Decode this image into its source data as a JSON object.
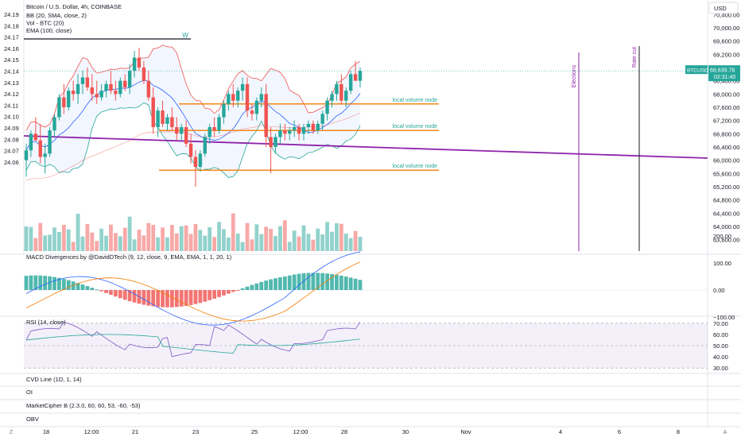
{
  "header": {
    "symbol": "Bitcoin / U.S. Dollar, 4h, COINBASE",
    "indicators": [
      "BB (20, SMA, close, 2)",
      "Vol - BTC (20)",
      "EMA (100, close)"
    ],
    "currency": "USD"
  },
  "price_badge": {
    "ticker": "BTCUSD",
    "price": "68,639.78",
    "countdown": "02:31:40"
  },
  "colors": {
    "up": "#26a69a",
    "down": "#ef5350",
    "ema": "#8e24aa",
    "bb": "#2962ff",
    "level": "#f57c00",
    "rsi": "#7e57c2"
  },
  "chart_data": {
    "type": "candlestick",
    "right_axis": [
      "70,400.00",
      "70,000.00",
      "69,600.00",
      "69,200.00",
      "68,800.00",
      "68,400.00",
      "68,000.00",
      "67,600.00",
      "67,200.00",
      "66,800.00",
      "66,400.00",
      "66,000.00",
      "65,600.00",
      "65,200.00",
      "64,800.00",
      "64,400.00",
      "64,000.00",
      "63,600.00"
    ],
    "left_axis": [
      "24.19",
      "24.18",
      "24.17",
      "24.16",
      "24.15",
      "24.14",
      "24.13",
      "24.12",
      "24.11",
      "24.10",
      "24.09",
      "24.08",
      "24.07",
      "24.06"
    ],
    "x_axis": [
      "18",
      "12:00",
      "21",
      "23",
      "25",
      "12:00",
      "28",
      "30",
      "Nov",
      "4",
      "6",
      "8"
    ],
    "ohlc": [
      [
        66000,
        66500,
        65500,
        66300
      ],
      [
        66300,
        66900,
        66100,
        66800
      ],
      [
        66800,
        67300,
        66600,
        66600
      ],
      [
        66600,
        67100,
        65900,
        66100
      ],
      [
        66100,
        66500,
        65600,
        66200
      ],
      [
        66200,
        67000,
        66100,
        66900
      ],
      [
        66900,
        67400,
        66700,
        67300
      ],
      [
        67300,
        68000,
        67200,
        67900
      ],
      [
        67900,
        68300,
        67400,
        67600
      ],
      [
        67600,
        68200,
        67500,
        68100
      ],
      [
        68100,
        68400,
        67800,
        68000
      ],
      [
        68000,
        68600,
        67700,
        68300
      ],
      [
        68300,
        68700,
        68000,
        68500
      ],
      [
        68500,
        68800,
        68100,
        68200
      ],
      [
        68200,
        68600,
        67800,
        68000
      ],
      [
        68000,
        68400,
        67700,
        67900
      ],
      [
        67900,
        68300,
        67800,
        68100
      ],
      [
        68100,
        68400,
        67900,
        68300
      ],
      [
        68300,
        68700,
        68000,
        68100
      ],
      [
        68100,
        68400,
        67800,
        68000
      ],
      [
        68000,
        68500,
        67900,
        68400
      ],
      [
        68400,
        68600,
        68100,
        68200
      ],
      [
        68200,
        68900,
        68000,
        68700
      ],
      [
        68700,
        69300,
        68500,
        69100
      ],
      [
        69100,
        69400,
        68700,
        68800
      ],
      [
        68800,
        69000,
        68300,
        68400
      ],
      [
        68400,
        68700,
        67800,
        67900
      ],
      [
        67900,
        68200,
        66800,
        67000
      ],
      [
        67000,
        67600,
        66700,
        67500
      ],
      [
        67500,
        67800,
        67000,
        67100
      ],
      [
        67100,
        67400,
        66900,
        67300
      ],
      [
        67300,
        67600,
        66900,
        67000
      ],
      [
        67000,
        67300,
        66600,
        66800
      ],
      [
        66800,
        67100,
        66600,
        67000
      ],
      [
        67000,
        67200,
        66400,
        66500
      ],
      [
        66500,
        66800,
        65900,
        66100
      ],
      [
        66100,
        66300,
        65200,
        65800
      ],
      [
        65800,
        66300,
        65700,
        66200
      ],
      [
        66200,
        66800,
        66100,
        66700
      ],
      [
        66700,
        67100,
        66500,
        67000
      ],
      [
        67000,
        67300,
        66700,
        66900
      ],
      [
        66900,
        67400,
        66800,
        67300
      ],
      [
        67300,
        67800,
        67100,
        67700
      ],
      [
        67700,
        68100,
        67500,
        68000
      ],
      [
        68000,
        68300,
        67600,
        67800
      ],
      [
        67800,
        68200,
        67600,
        68100
      ],
      [
        68100,
        68500,
        67800,
        68300
      ],
      [
        68300,
        68500,
        67300,
        67500
      ],
      [
        67500,
        67700,
        67200,
        67400
      ],
      [
        67400,
        67900,
        67200,
        67800
      ],
      [
        67800,
        68200,
        67600,
        68000
      ],
      [
        68000,
        68300,
        66400,
        66700
      ],
      [
        66700,
        67000,
        65600,
        66400
      ],
      [
        66400,
        66800,
        66200,
        66700
      ],
      [
        66700,
        67100,
        66500,
        66900
      ],
      [
        66900,
        67100,
        66600,
        66800
      ],
      [
        66800,
        67000,
        66600,
        66900
      ],
      [
        66900,
        67200,
        66700,
        67000
      ],
      [
        67000,
        67100,
        66600,
        66800
      ],
      [
        66800,
        67100,
        66600,
        67000
      ],
      [
        67000,
        67200,
        66800,
        67100
      ],
      [
        67100,
        67200,
        66800,
        66900
      ],
      [
        66900,
        67200,
        66800,
        67100
      ],
      [
        67100,
        67500,
        66900,
        67400
      ],
      [
        67400,
        67900,
        67200,
        67800
      ],
      [
        67800,
        68100,
        67600,
        68000
      ],
      [
        68000,
        68400,
        67800,
        68300
      ],
      [
        68300,
        68600,
        67700,
        67800
      ],
      [
        67800,
        68200,
        67600,
        68100
      ],
      [
        68100,
        68700,
        68000,
        68600
      ],
      [
        68600,
        69000,
        68400,
        68400
      ],
      [
        68400,
        68800,
        68200,
        68700
      ]
    ],
    "volume_levels": [
      {
        "price": 67700,
        "label": "local volume node"
      },
      {
        "price": 66900,
        "label": "local volume node"
      },
      {
        "price": 65700,
        "label": "local volume node"
      }
    ],
    "annotations": [
      {
        "label": "W"
      },
      {
        "label": "Elections"
      },
      {
        "label": "Rate cut"
      }
    ],
    "macd": {
      "title": "MACD Divergences by @DavidDTech (9, 12, close, 9, EMA, EMA, 1, 1, 20, 1)",
      "axis": [
        "200.00",
        "100.00",
        "0.00",
        "−100.00"
      ]
    },
    "rsi": {
      "title": "RSI (14, close)",
      "axis": [
        "70.00",
        "60.00",
        "50.00",
        "40.00",
        "30.00"
      ]
    }
  },
  "collapsed_panes": [
    "CVD Line (1D, 1, 14)",
    "OI",
    "MarketCipher B (2.3.0, 60, 60, 53, -60, -53)",
    "OBV"
  ],
  "corner_labels": {
    "left": "Z",
    "right": "A"
  }
}
